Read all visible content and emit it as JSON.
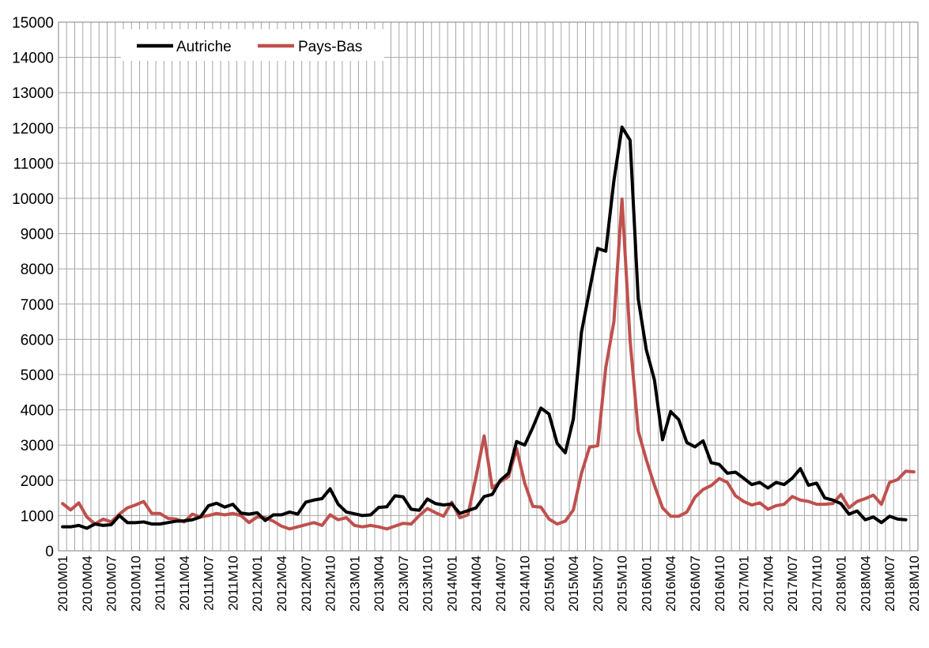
{
  "chart_data": {
    "type": "line",
    "title": "",
    "xlabel": "",
    "ylabel": "",
    "ylim": [
      0,
      15000
    ],
    "y_ticks": [
      0,
      1000,
      2000,
      3000,
      4000,
      5000,
      6000,
      7000,
      8000,
      9000,
      10000,
      11000,
      12000,
      13000,
      14000,
      15000
    ],
    "x_start": "2010M01",
    "x_tick_labels": [
      "2010M01",
      "2010M04",
      "2010M07",
      "2010M10",
      "2011M01",
      "2011M04",
      "2011M07",
      "2011M10",
      "2012M01",
      "2012M04",
      "2012M07",
      "2012M10",
      "2013M01",
      "2013M04",
      "2013M07",
      "2013M10",
      "2014M01",
      "2014M04",
      "2014M07",
      "2014M10",
      "2015M01",
      "2015M04",
      "2015M07",
      "2015M10",
      "2016M01",
      "2016M04",
      "2016M07",
      "2016M10",
      "2017M01",
      "2017M04",
      "2017M07",
      "2017M10",
      "2018M01",
      "2018M04",
      "2018M07",
      "2018M10"
    ],
    "grid": true,
    "legend_position": "top-left",
    "series": [
      {
        "name": "Autriche",
        "color": "#000000",
        "values": [
          680,
          680,
          720,
          640,
          760,
          720,
          740,
          1000,
          800,
          800,
          820,
          760,
          760,
          800,
          840,
          850,
          880,
          960,
          1280,
          1350,
          1240,
          1320,
          1070,
          1040,
          1080,
          860,
          1020,
          1020,
          1100,
          1040,
          1380,
          1440,
          1480,
          1760,
          1320,
          1100,
          1050,
          1000,
          1020,
          1230,
          1250,
          1560,
          1530,
          1180,
          1150,
          1470,
          1340,
          1300,
          1330,
          1060,
          1140,
          1220,
          1540,
          1600,
          2000,
          2200,
          3100,
          3000,
          3500,
          4050,
          3880,
          3050,
          2780,
          3740,
          6200,
          7400,
          8580,
          8500,
          10500,
          12020,
          11650,
          7150,
          5700,
          4850,
          3150,
          3950,
          3720,
          3070,
          2950,
          3120,
          2500,
          2450,
          2200,
          2230,
          2060,
          1880,
          1940,
          1780,
          1940,
          1880,
          2060,
          2330,
          1860,
          1920,
          1500,
          1440,
          1340,
          1040,
          1130,
          880,
          960,
          800,
          980,
          900,
          880
        ],
        "valid_points": 105
      },
      {
        "name": "Pays-Bas",
        "color": "#c0504d",
        "values": [
          1340,
          1160,
          1360,
          960,
          760,
          900,
          820,
          1040,
          1220,
          1300,
          1400,
          1060,
          1060,
          920,
          900,
          820,
          1040,
          960,
          1000,
          1060,
          1020,
          1060,
          1000,
          800,
          960,
          940,
          840,
          700,
          620,
          680,
          740,
          800,
          720,
          1020,
          880,
          940,
          720,
          680,
          720,
          680,
          620,
          700,
          780,
          760,
          1000,
          1200,
          1080,
          980,
          1380,
          940,
          1020,
          2100,
          3260,
          1780,
          1960,
          2100,
          2900,
          1920,
          1260,
          1240,
          900,
          760,
          840,
          1160,
          2200,
          2940,
          2980,
          5200,
          6500,
          9980,
          5960,
          3400,
          2580,
          1860,
          1220,
          980,
          980,
          1100,
          1520,
          1740,
          1850,
          2050,
          1940,
          1560,
          1400,
          1300,
          1360,
          1180,
          1280,
          1320,
          1540,
          1440,
          1400,
          1320,
          1320,
          1340,
          1600,
          1220,
          1400,
          1480,
          1580,
          1320,
          1940,
          2020,
          2260,
          2240
        ]
      }
    ]
  }
}
